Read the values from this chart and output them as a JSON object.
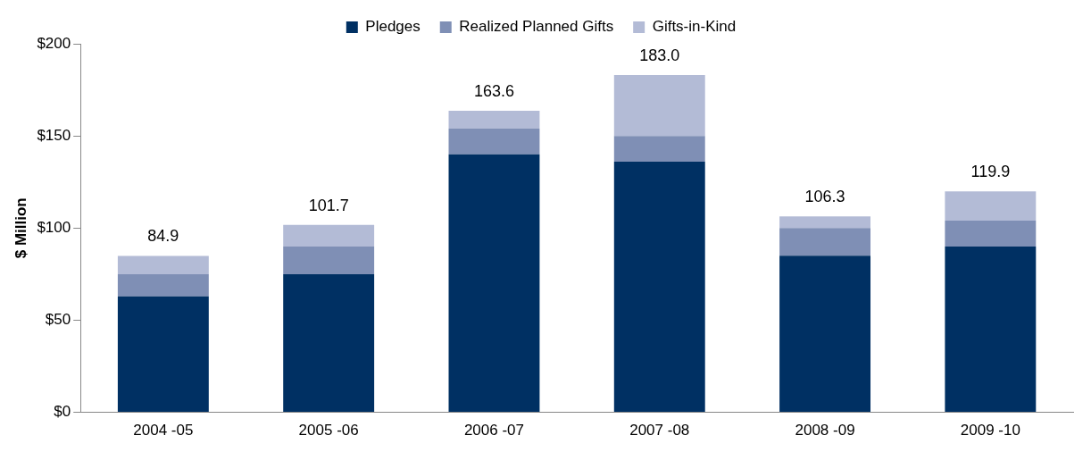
{
  "chart_data": {
    "type": "bar",
    "stacked": true,
    "ylabel": "$ Million",
    "categories": [
      "2004 -05",
      "2005 -06",
      "2006 -07",
      "2007 -08",
      "2008 -09",
      "2009 -10"
    ],
    "series": [
      {
        "name": "Pledges",
        "color": "#003063",
        "values": [
          63,
          75,
          140,
          136,
          85,
          90
        ]
      },
      {
        "name": "Realized Planned Gifts",
        "color": "#7f8fb5",
        "values": [
          12,
          15,
          14,
          14,
          15,
          14
        ]
      },
      {
        "name": "Gifts-in-Kind",
        "color": "#b3bbd6",
        "values": [
          9.9,
          11.7,
          9.6,
          33,
          6.3,
          15.9
        ]
      }
    ],
    "totals": [
      "84.9",
      "101.7",
      "163.6",
      "183.0",
      "106.3",
      "119.9"
    ],
    "ylim": [
      0,
      200
    ],
    "yticks": [
      {
        "value": 0,
        "label": "$0"
      },
      {
        "value": 50,
        "label": "$50"
      },
      {
        "value": 100,
        "label": "$100"
      },
      {
        "value": 150,
        "label": "$150"
      },
      {
        "value": 200,
        "label": "$200"
      }
    ],
    "grid": false,
    "legend": "top"
  }
}
